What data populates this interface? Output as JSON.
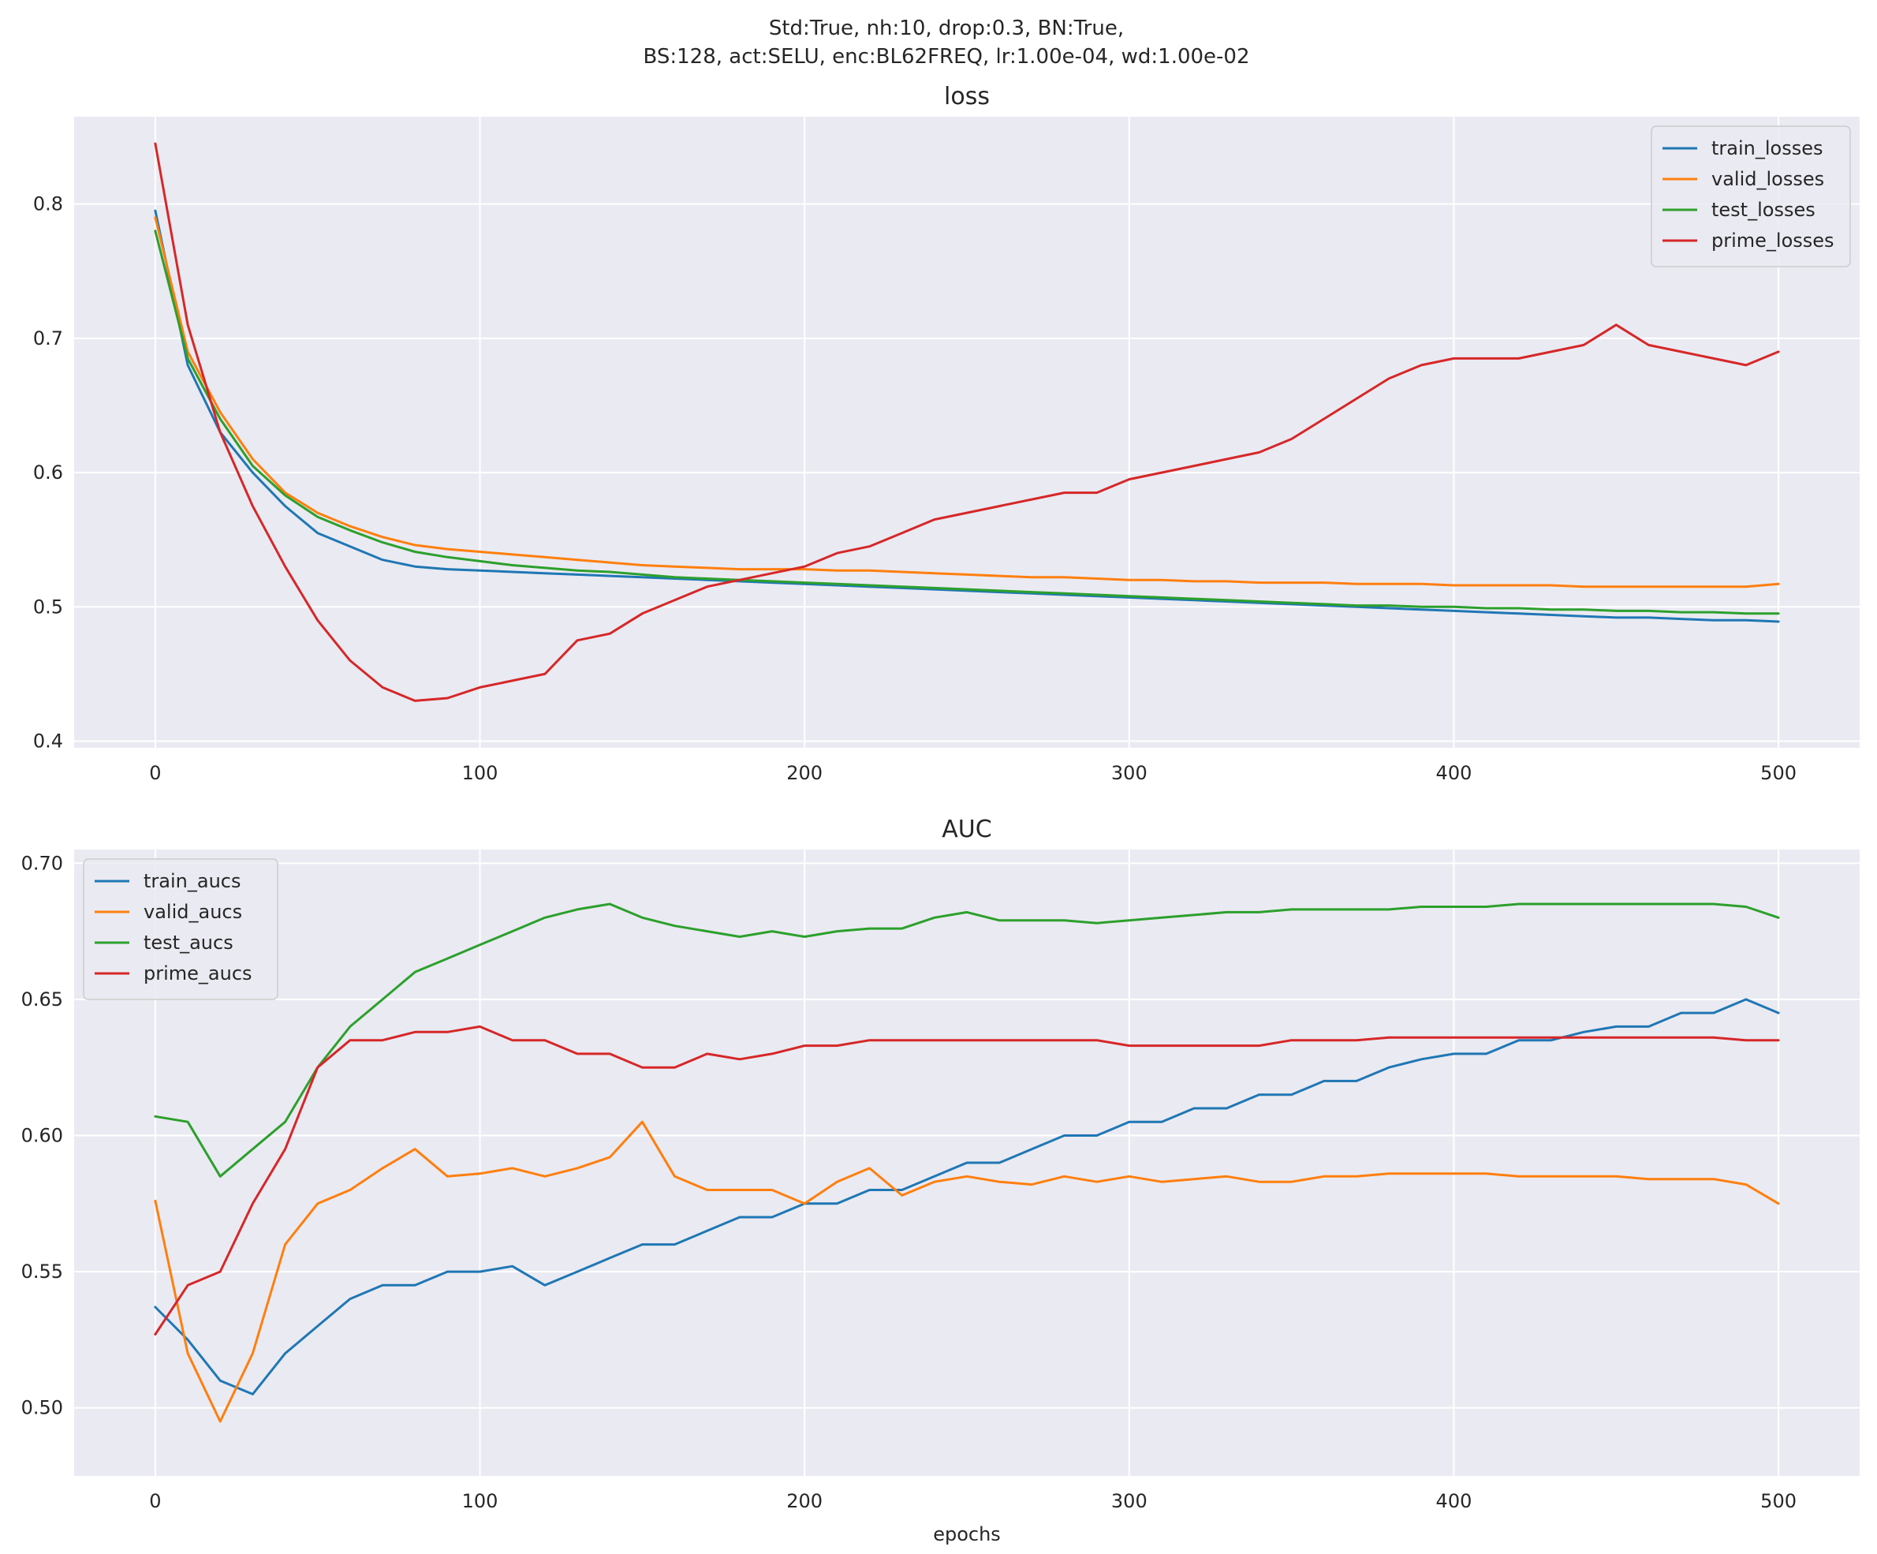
{
  "figure": {
    "suptitle_lines": [
      "Std:True, nh:10, drop:0.3, BN:True,",
      "BS:128, act:SELU, enc:BL62FREQ, lr:1.00e-04, wd:1.00e-02"
    ],
    "background": "#ffffff",
    "axes_background": "#eaeaf2",
    "grid_color": "#ffffff"
  },
  "chart_data": [
    {
      "type": "line",
      "title": "loss",
      "xlabel": "",
      "ylabel": "",
      "xlim": [
        -25,
        525
      ],
      "ylim": [
        0.395,
        0.865
      ],
      "xticks": [
        0,
        100,
        200,
        300,
        400,
        500
      ],
      "xtick_labels": [
        "0",
        "100",
        "200",
        "300",
        "400",
        "500"
      ],
      "yticks": [
        0.4,
        0.5,
        0.6,
        0.7,
        0.8
      ],
      "ytick_labels": [
        "0.4",
        "0.5",
        "0.6",
        "0.7",
        "0.8"
      ],
      "grid": true,
      "legend": "upper-right",
      "x": [
        0,
        10,
        20,
        30,
        40,
        50,
        60,
        70,
        80,
        90,
        100,
        110,
        120,
        130,
        140,
        150,
        160,
        170,
        180,
        190,
        200,
        210,
        220,
        230,
        240,
        250,
        260,
        270,
        280,
        290,
        300,
        310,
        320,
        330,
        340,
        350,
        360,
        370,
        380,
        390,
        400,
        410,
        420,
        430,
        440,
        450,
        460,
        470,
        480,
        490,
        500
      ],
      "series": [
        {
          "name": "train_losses",
          "color": "#1f77b4",
          "values": [
            0.795,
            0.68,
            0.63,
            0.6,
            0.575,
            0.555,
            0.545,
            0.535,
            0.53,
            0.528,
            0.527,
            0.526,
            0.525,
            0.524,
            0.523,
            0.522,
            0.521,
            0.52,
            0.519,
            0.518,
            0.517,
            0.516,
            0.515,
            0.514,
            0.513,
            0.512,
            0.511,
            0.51,
            0.509,
            0.508,
            0.507,
            0.506,
            0.505,
            0.504,
            0.503,
            0.502,
            0.501,
            0.5,
            0.499,
            0.498,
            0.497,
            0.496,
            0.495,
            0.494,
            0.493,
            0.492,
            0.492,
            0.491,
            0.49,
            0.49,
            0.489
          ]
        },
        {
          "name": "valid_losses",
          "color": "#ff7f0e",
          "values": [
            0.79,
            0.69,
            0.645,
            0.61,
            0.585,
            0.57,
            0.56,
            0.552,
            0.546,
            0.543,
            0.541,
            0.539,
            0.537,
            0.535,
            0.533,
            0.531,
            0.53,
            0.529,
            0.528,
            0.528,
            0.528,
            0.527,
            0.527,
            0.526,
            0.525,
            0.524,
            0.523,
            0.522,
            0.522,
            0.521,
            0.52,
            0.52,
            0.519,
            0.519,
            0.518,
            0.518,
            0.518,
            0.517,
            0.517,
            0.517,
            0.516,
            0.516,
            0.516,
            0.516,
            0.515,
            0.515,
            0.515,
            0.515,
            0.515,
            0.515,
            0.517
          ]
        },
        {
          "name": "test_losses",
          "color": "#2ca02c",
          "values": [
            0.78,
            0.685,
            0.64,
            0.605,
            0.583,
            0.567,
            0.557,
            0.548,
            0.541,
            0.537,
            0.534,
            0.531,
            0.529,
            0.527,
            0.526,
            0.524,
            0.522,
            0.521,
            0.52,
            0.519,
            0.518,
            0.517,
            0.516,
            0.515,
            0.514,
            0.513,
            0.512,
            0.511,
            0.51,
            0.509,
            0.508,
            0.507,
            0.506,
            0.505,
            0.504,
            0.503,
            0.502,
            0.501,
            0.501,
            0.5,
            0.5,
            0.499,
            0.499,
            0.498,
            0.498,
            0.497,
            0.497,
            0.496,
            0.496,
            0.495,
            0.495
          ]
        },
        {
          "name": "prime_losses",
          "color": "#d62728",
          "values": [
            0.845,
            0.71,
            0.63,
            0.575,
            0.53,
            0.49,
            0.46,
            0.44,
            0.43,
            0.432,
            0.44,
            0.445,
            0.45,
            0.475,
            0.48,
            0.495,
            0.505,
            0.515,
            0.52,
            0.525,
            0.53,
            0.54,
            0.545,
            0.555,
            0.565,
            0.57,
            0.575,
            0.58,
            0.585,
            0.585,
            0.595,
            0.6,
            0.605,
            0.61,
            0.615,
            0.625,
            0.64,
            0.655,
            0.67,
            0.68,
            0.685,
            0.685,
            0.685,
            0.69,
            0.695,
            0.71,
            0.695,
            0.69,
            0.685,
            0.68,
            0.69
          ]
        }
      ]
    },
    {
      "type": "line",
      "title": "AUC",
      "xlabel": "epochs",
      "ylabel": "",
      "xlim": [
        -25,
        525
      ],
      "ylim": [
        0.475,
        0.705
      ],
      "xticks": [
        0,
        100,
        200,
        300,
        400,
        500
      ],
      "xtick_labels": [
        "0",
        "100",
        "200",
        "300",
        "400",
        "500"
      ],
      "yticks": [
        0.5,
        0.55,
        0.6,
        0.65,
        0.7
      ],
      "ytick_labels": [
        "0.50",
        "0.55",
        "0.60",
        "0.65",
        "0.70"
      ],
      "grid": true,
      "legend": "upper-left",
      "x": [
        0,
        10,
        20,
        30,
        40,
        50,
        60,
        70,
        80,
        90,
        100,
        110,
        120,
        130,
        140,
        150,
        160,
        170,
        180,
        190,
        200,
        210,
        220,
        230,
        240,
        250,
        260,
        270,
        280,
        290,
        300,
        310,
        320,
        330,
        340,
        350,
        360,
        370,
        380,
        390,
        400,
        410,
        420,
        430,
        440,
        450,
        460,
        470,
        480,
        490,
        500
      ],
      "series": [
        {
          "name": "train_aucs",
          "color": "#1f77b4",
          "values": [
            0.537,
            0.525,
            0.51,
            0.505,
            0.52,
            0.53,
            0.54,
            0.545,
            0.545,
            0.55,
            0.55,
            0.552,
            0.545,
            0.55,
            0.555,
            0.56,
            0.56,
            0.565,
            0.57,
            0.57,
            0.575,
            0.575,
            0.58,
            0.58,
            0.585,
            0.59,
            0.59,
            0.595,
            0.6,
            0.6,
            0.605,
            0.605,
            0.61,
            0.61,
            0.615,
            0.615,
            0.62,
            0.62,
            0.625,
            0.628,
            0.63,
            0.63,
            0.635,
            0.635,
            0.638,
            0.64,
            0.64,
            0.645,
            0.645,
            0.65,
            0.645
          ]
        },
        {
          "name": "valid_aucs",
          "color": "#ff7f0e",
          "values": [
            0.576,
            0.52,
            0.495,
            0.52,
            0.56,
            0.575,
            0.58,
            0.588,
            0.595,
            0.585,
            0.586,
            0.588,
            0.585,
            0.588,
            0.592,
            0.605,
            0.585,
            0.58,
            0.58,
            0.58,
            0.575,
            0.583,
            0.588,
            0.578,
            0.583,
            0.585,
            0.583,
            0.582,
            0.585,
            0.583,
            0.585,
            0.583,
            0.584,
            0.585,
            0.583,
            0.583,
            0.585,
            0.585,
            0.586,
            0.586,
            0.586,
            0.586,
            0.585,
            0.585,
            0.585,
            0.585,
            0.584,
            0.584,
            0.584,
            0.582,
            0.575
          ]
        },
        {
          "name": "test_aucs",
          "color": "#2ca02c",
          "values": [
            0.607,
            0.605,
            0.585,
            0.595,
            0.605,
            0.625,
            0.64,
            0.65,
            0.66,
            0.665,
            0.67,
            0.675,
            0.68,
            0.683,
            0.685,
            0.68,
            0.677,
            0.675,
            0.673,
            0.675,
            0.673,
            0.675,
            0.676,
            0.676,
            0.68,
            0.682,
            0.679,
            0.679,
            0.679,
            0.678,
            0.679,
            0.68,
            0.681,
            0.682,
            0.682,
            0.683,
            0.683,
            0.683,
            0.683,
            0.684,
            0.684,
            0.684,
            0.685,
            0.685,
            0.685,
            0.685,
            0.685,
            0.685,
            0.685,
            0.684,
            0.68
          ]
        },
        {
          "name": "prime_aucs",
          "color": "#d62728",
          "values": [
            0.527,
            0.545,
            0.55,
            0.575,
            0.595,
            0.625,
            0.635,
            0.635,
            0.638,
            0.638,
            0.64,
            0.635,
            0.635,
            0.63,
            0.63,
            0.625,
            0.625,
            0.63,
            0.628,
            0.63,
            0.633,
            0.633,
            0.635,
            0.635,
            0.635,
            0.635,
            0.635,
            0.635,
            0.635,
            0.635,
            0.633,
            0.633,
            0.633,
            0.633,
            0.633,
            0.635,
            0.635,
            0.635,
            0.636,
            0.636,
            0.636,
            0.636,
            0.636,
            0.636,
            0.636,
            0.636,
            0.636,
            0.636,
            0.636,
            0.635,
            0.635
          ]
        }
      ]
    }
  ]
}
